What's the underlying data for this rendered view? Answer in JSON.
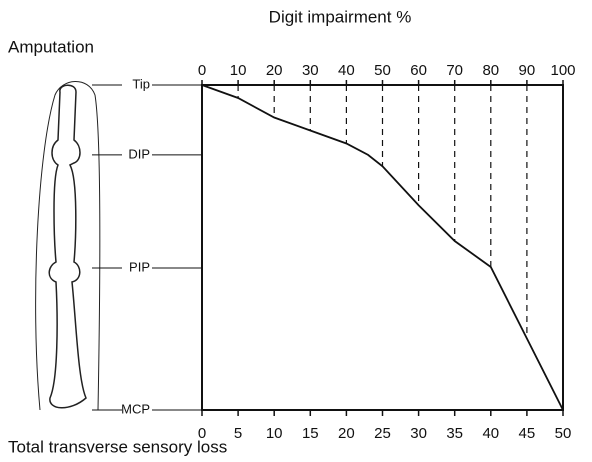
{
  "chart_data": {
    "type": "line",
    "title": "Digit impairment %",
    "y_label": "Amputation",
    "x2_label": "Total transverse sensory loss",
    "xlim": [
      0,
      100
    ],
    "xticks": [
      0,
      10,
      20,
      30,
      40,
      50,
      60,
      70,
      80,
      90,
      100
    ],
    "x2lim": [
      0,
      50
    ],
    "x2ticks": [
      0,
      5,
      10,
      15,
      20,
      25,
      30,
      35,
      40,
      45,
      50
    ],
    "ylim": [
      0,
      100
    ],
    "yticks": [
      {
        "value": 0,
        "label": "Tip"
      },
      {
        "value": 21.5,
        "label": "DIP"
      },
      {
        "value": 56.3,
        "label": "PIP"
      },
      {
        "value": 100,
        "label": "MCP"
      }
    ],
    "series": [
      {
        "color": "#111",
        "x": [
          0,
          10,
          20,
          30,
          40,
          46,
          50,
          60,
          70,
          80,
          90,
          100
        ],
        "values": [
          0,
          4,
          10,
          14,
          18,
          21.5,
          25,
          37,
          48,
          56,
          78,
          100
        ]
      }
    ]
  }
}
